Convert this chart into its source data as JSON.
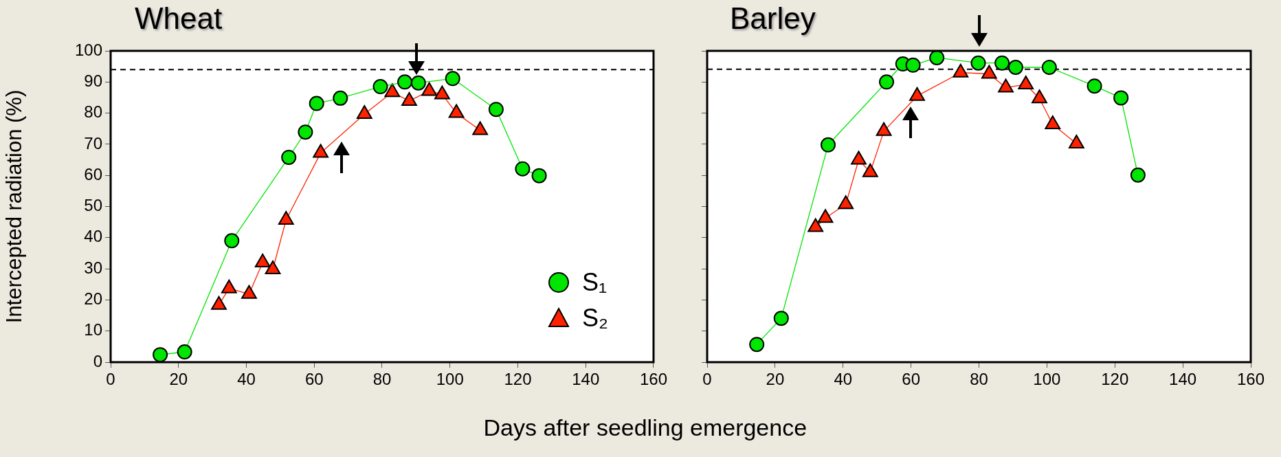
{
  "chart_data": [
    {
      "type": "line",
      "title": "Wheat",
      "xlabel": "Days after seedling emergence",
      "ylabel": "Intercepted radiation (%)",
      "xlim": [
        0,
        160
      ],
      "xticks": [
        0,
        20,
        40,
        60,
        80,
        100,
        120,
        140,
        160
      ],
      "ylim": [
        0,
        100
      ],
      "yticks": [
        0,
        10,
        20,
        30,
        40,
        50,
        60,
        70,
        80,
        90,
        100
      ],
      "legend": "bottom right",
      "ref_lines": [
        {
          "axis": "y",
          "value": 94,
          "color": "#000000",
          "line_style": "dashed"
        }
      ],
      "series": [
        {
          "name": "S₁",
          "color": "#00e600",
          "marker": "circle",
          "x": [
            14.6,
            21.8,
            35.7,
            52.5,
            57.4,
            60.7,
            67.7,
            79.5,
            86.7,
            90.7,
            100.8,
            113.6,
            121.4,
            126.3
          ],
          "values": [
            2.4,
            3.3,
            39,
            65.8,
            73.9,
            83.1,
            84.8,
            88.5,
            90,
            89.7,
            91.1,
            81.2,
            62.1,
            59.9
          ]
        },
        {
          "name": "S₂",
          "color": "#ff2200",
          "marker": "triangle",
          "x": [
            31.9,
            34.9,
            40.8,
            44.8,
            47.8,
            51.7,
            61.9,
            74.8,
            83,
            88,
            93.9,
            97.7,
            101.9,
            108.9
          ],
          "values": [
            18.4,
            23.7,
            21.9,
            32,
            29.8,
            45.7,
            67.2,
            79.7,
            86.7,
            83.9,
            87.1,
            86,
            80,
            74.5
          ]
        }
      ]
    },
    {
      "type": "line",
      "title": "Barley",
      "xlim": [
        0,
        160
      ],
      "xticks": [
        0,
        20,
        40,
        60,
        80,
        100,
        120,
        140,
        160
      ],
      "ylim": [
        0,
        100
      ],
      "yticks": [
        0,
        10,
        20,
        30,
        40,
        50,
        60,
        70,
        80,
        90,
        100
      ],
      "tick_labels": "x",
      "ref_lines": [
        {
          "axis": "y",
          "value": 94.1,
          "color": "#000000",
          "line_style": "dashed"
        }
      ],
      "series": [
        {
          "color": "#00e600",
          "marker": "circle",
          "x": [
            14.6,
            21.8,
            35.6,
            52.8,
            57.6,
            60.6,
            67.6,
            79.8,
            86.8,
            90.8,
            100.7,
            114,
            121.8,
            126.8
          ],
          "values": [
            5.7,
            14.1,
            69.8,
            90,
            95.8,
            95.4,
            97.8,
            96.1,
            96.1,
            94.7,
            94.7,
            88.7,
            84.9,
            60.1
          ]
        },
        {
          "color": "#ff2200",
          "marker": "triangle",
          "x": [
            31.9,
            34.8,
            40.8,
            44.6,
            48,
            52,
            61.8,
            74.6,
            83,
            87.9,
            93.8,
            97.8,
            101.7,
            108.7
          ],
          "values": [
            43.4,
            46.3,
            50.7,
            65,
            61,
            74.2,
            85.5,
            93,
            92.6,
            88.2,
            89.2,
            84.7,
            76.4,
            70.2
          ]
        }
      ]
    }
  ]
}
